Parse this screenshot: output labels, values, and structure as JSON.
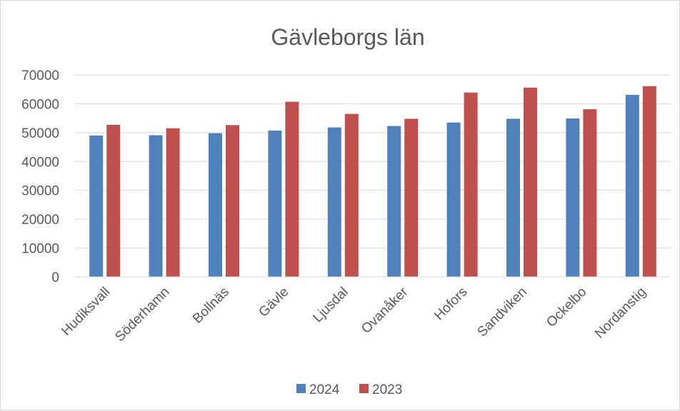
{
  "chart_data": {
    "type": "bar",
    "title": "Gävleborgs län",
    "xlabel": "",
    "ylabel": "",
    "categories": [
      "Hudiksvall",
      "Söderhamn",
      "Bollnäs",
      "Gävle",
      "Ljusdal",
      "Ovanåker",
      "Hofors",
      "Sandviken",
      "Ockelbo",
      "Nordanstig"
    ],
    "series": [
      {
        "name": "2024",
        "color": "#4f81bd",
        "values": [
          49000,
          49100,
          49800,
          50700,
          51800,
          52300,
          53500,
          54800,
          54900,
          63100
        ]
      },
      {
        "name": "2023",
        "color": "#c0504d",
        "values": [
          52700,
          51500,
          52600,
          60700,
          56500,
          54800,
          63900,
          65600,
          58100,
          66100
        ]
      }
    ],
    "ylim": [
      0,
      70000
    ],
    "yticks": [
      "0",
      "10000",
      "20000",
      "30000",
      "40000",
      "50000",
      "60000",
      "70000"
    ],
    "grid": true,
    "legend": "bottom",
    "x_label_rotation": "-45deg"
  }
}
